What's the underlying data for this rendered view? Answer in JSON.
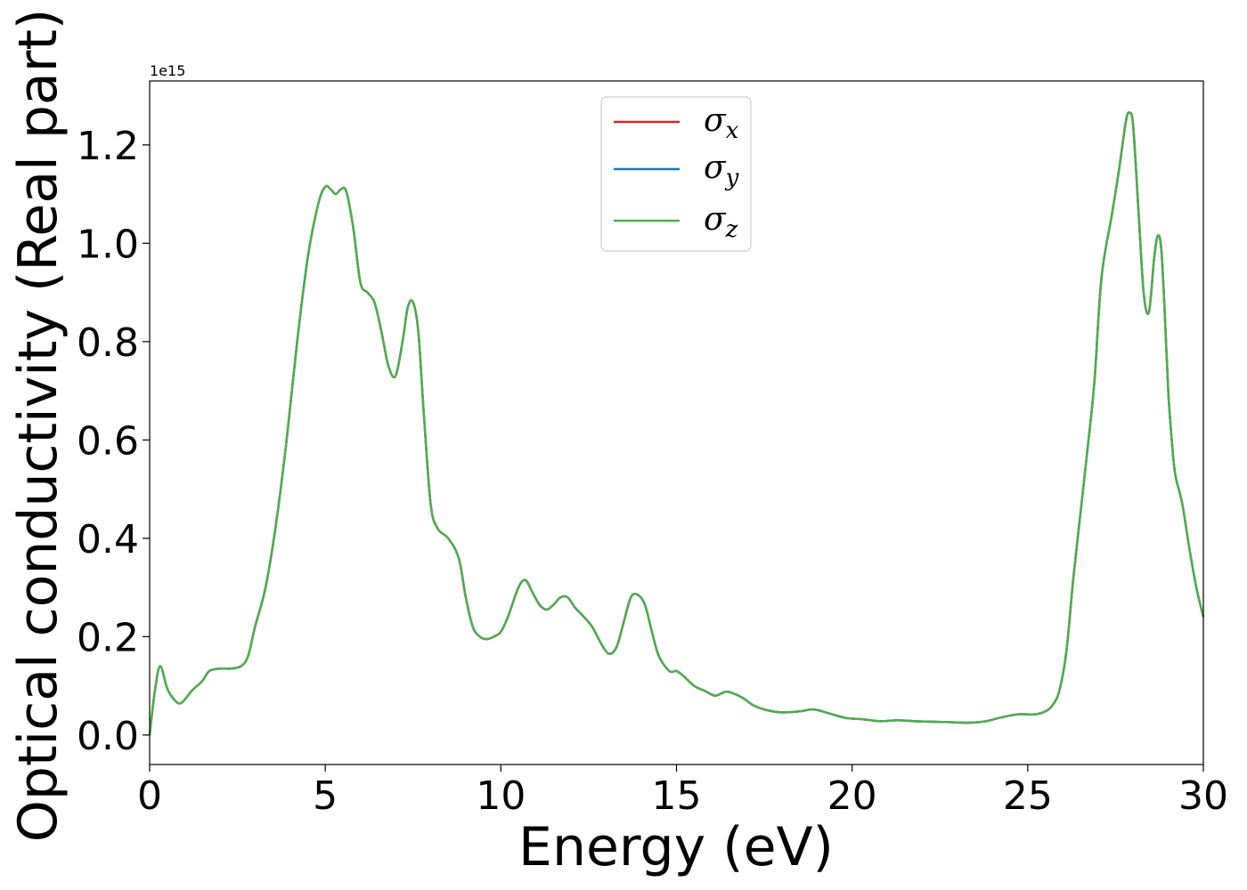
{
  "chart_data": {
    "type": "line",
    "title": "",
    "xlabel": "Energy (eV)",
    "ylabel": "Optical conductivity (Real part)",
    "y_offset_label": "1e15",
    "y_multiplier": 1000000000000000.0,
    "xlim": [
      0,
      30
    ],
    "ylim": [
      -0.06,
      1.33
    ],
    "xticks": [
      0,
      5,
      10,
      15,
      20,
      25,
      30
    ],
    "xtick_labels": [
      "0",
      "5",
      "10",
      "15",
      "20",
      "25",
      "30"
    ],
    "yticks": [
      0.0,
      0.2,
      0.4,
      0.6,
      0.8,
      1.0,
      1.2
    ],
    "ytick_labels": [
      "0.0",
      "0.2",
      "0.4",
      "0.6",
      "0.8",
      "1.0",
      "1.2"
    ],
    "grid": false,
    "legend_position": "top-center",
    "x": [
      0,
      0.15,
      0.3,
      0.5,
      0.7,
      0.9,
      1.2,
      1.5,
      1.7,
      2.0,
      2.3,
      2.6,
      2.8,
      3.0,
      3.3,
      3.6,
      3.9,
      4.2,
      4.5,
      4.8,
      5.0,
      5.15,
      5.3,
      5.45,
      5.6,
      5.8,
      6.0,
      6.2,
      6.4,
      6.6,
      6.8,
      7.0,
      7.2,
      7.35,
      7.5,
      7.65,
      7.8,
      8.0,
      8.2,
      8.5,
      8.8,
      9.0,
      9.2,
      9.4,
      9.6,
      9.8,
      10.0,
      10.2,
      10.5,
      10.7,
      10.9,
      11.1,
      11.3,
      11.5,
      11.7,
      11.9,
      12.1,
      12.3,
      12.6,
      12.9,
      13.1,
      13.3,
      13.5,
      13.7,
      13.9,
      14.1,
      14.3,
      14.5,
      14.8,
      15.0,
      15.2,
      15.5,
      15.8,
      16.1,
      16.4,
      16.6,
      16.9,
      17.2,
      17.6,
      18.0,
      18.5,
      18.9,
      19.3,
      19.8,
      20.3,
      20.8,
      21.3,
      21.8,
      22.3,
      22.8,
      23.3,
      23.8,
      24.2,
      24.7,
      25.2,
      25.5,
      25.7,
      25.9,
      26.1,
      26.3,
      26.5,
      26.7,
      26.9,
      27.1,
      27.4,
      27.6,
      27.8,
      27.9,
      28.0,
      28.15,
      28.3,
      28.45,
      28.6,
      28.7,
      28.8,
      28.9,
      29.0,
      29.1,
      29.2,
      29.4,
      29.6,
      29.8,
      30.0
    ],
    "series": [
      {
        "name": "σx",
        "label_base": "σ",
        "label_sub": "x",
        "color": "#d62728",
        "values": [
          0.0,
          0.09,
          0.14,
          0.095,
          0.072,
          0.065,
          0.09,
          0.11,
          0.13,
          0.135,
          0.135,
          0.14,
          0.16,
          0.22,
          0.3,
          0.43,
          0.6,
          0.8,
          0.97,
          1.08,
          1.115,
          1.11,
          1.1,
          1.11,
          1.105,
          1.03,
          0.92,
          0.9,
          0.88,
          0.82,
          0.75,
          0.73,
          0.8,
          0.87,
          0.88,
          0.82,
          0.66,
          0.47,
          0.42,
          0.4,
          0.36,
          0.28,
          0.22,
          0.2,
          0.195,
          0.2,
          0.21,
          0.24,
          0.3,
          0.315,
          0.29,
          0.265,
          0.255,
          0.265,
          0.28,
          0.28,
          0.26,
          0.245,
          0.22,
          0.18,
          0.165,
          0.18,
          0.23,
          0.28,
          0.285,
          0.265,
          0.21,
          0.16,
          0.13,
          0.13,
          0.12,
          0.1,
          0.09,
          0.08,
          0.088,
          0.085,
          0.075,
          0.06,
          0.05,
          0.046,
          0.048,
          0.052,
          0.045,
          0.035,
          0.032,
          0.028,
          0.03,
          0.028,
          0.027,
          0.026,
          0.025,
          0.028,
          0.035,
          0.042,
          0.042,
          0.048,
          0.06,
          0.09,
          0.17,
          0.32,
          0.45,
          0.58,
          0.72,
          0.93,
          1.06,
          1.15,
          1.25,
          1.265,
          1.24,
          1.07,
          0.9,
          0.86,
          0.97,
          1.015,
          0.99,
          0.86,
          0.7,
          0.6,
          0.53,
          0.47,
          0.38,
          0.3,
          0.24
        ]
      },
      {
        "name": "σy",
        "label_base": "σ",
        "label_sub": "y",
        "color": "#1f77b4",
        "values": [
          0.0,
          0.09,
          0.14,
          0.095,
          0.072,
          0.065,
          0.09,
          0.11,
          0.13,
          0.135,
          0.135,
          0.14,
          0.16,
          0.22,
          0.3,
          0.43,
          0.6,
          0.8,
          0.97,
          1.08,
          1.115,
          1.11,
          1.1,
          1.11,
          1.105,
          1.03,
          0.92,
          0.9,
          0.88,
          0.82,
          0.75,
          0.73,
          0.8,
          0.87,
          0.88,
          0.82,
          0.66,
          0.47,
          0.42,
          0.4,
          0.36,
          0.28,
          0.22,
          0.2,
          0.195,
          0.2,
          0.21,
          0.24,
          0.3,
          0.315,
          0.29,
          0.265,
          0.255,
          0.265,
          0.28,
          0.28,
          0.26,
          0.245,
          0.22,
          0.18,
          0.165,
          0.18,
          0.23,
          0.28,
          0.285,
          0.265,
          0.21,
          0.16,
          0.13,
          0.13,
          0.12,
          0.1,
          0.09,
          0.08,
          0.088,
          0.085,
          0.075,
          0.06,
          0.05,
          0.046,
          0.048,
          0.052,
          0.045,
          0.035,
          0.032,
          0.028,
          0.03,
          0.028,
          0.027,
          0.026,
          0.025,
          0.028,
          0.035,
          0.042,
          0.042,
          0.048,
          0.06,
          0.09,
          0.17,
          0.32,
          0.45,
          0.58,
          0.72,
          0.93,
          1.06,
          1.15,
          1.25,
          1.265,
          1.24,
          1.07,
          0.9,
          0.86,
          0.97,
          1.015,
          0.99,
          0.86,
          0.7,
          0.6,
          0.53,
          0.47,
          0.38,
          0.3,
          0.24
        ]
      },
      {
        "name": "σz",
        "label_base": "σ",
        "label_sub": "z",
        "color": "#4daf4a",
        "values": [
          0.0,
          0.09,
          0.14,
          0.095,
          0.072,
          0.065,
          0.09,
          0.11,
          0.13,
          0.135,
          0.135,
          0.14,
          0.16,
          0.22,
          0.3,
          0.43,
          0.6,
          0.8,
          0.97,
          1.08,
          1.115,
          1.11,
          1.1,
          1.11,
          1.105,
          1.03,
          0.92,
          0.9,
          0.88,
          0.82,
          0.75,
          0.73,
          0.8,
          0.87,
          0.88,
          0.82,
          0.66,
          0.47,
          0.42,
          0.4,
          0.36,
          0.28,
          0.22,
          0.2,
          0.195,
          0.2,
          0.21,
          0.24,
          0.3,
          0.315,
          0.29,
          0.265,
          0.255,
          0.265,
          0.28,
          0.28,
          0.26,
          0.245,
          0.22,
          0.18,
          0.165,
          0.18,
          0.23,
          0.28,
          0.285,
          0.265,
          0.21,
          0.16,
          0.13,
          0.13,
          0.12,
          0.1,
          0.09,
          0.08,
          0.088,
          0.085,
          0.075,
          0.06,
          0.05,
          0.046,
          0.048,
          0.052,
          0.045,
          0.035,
          0.032,
          0.028,
          0.03,
          0.028,
          0.027,
          0.026,
          0.025,
          0.028,
          0.035,
          0.042,
          0.042,
          0.048,
          0.06,
          0.09,
          0.17,
          0.32,
          0.45,
          0.58,
          0.72,
          0.93,
          1.06,
          1.15,
          1.25,
          1.265,
          1.24,
          1.07,
          0.9,
          0.86,
          0.97,
          1.015,
          0.99,
          0.86,
          0.7,
          0.6,
          0.53,
          0.47,
          0.38,
          0.3,
          0.24
        ]
      }
    ]
  }
}
